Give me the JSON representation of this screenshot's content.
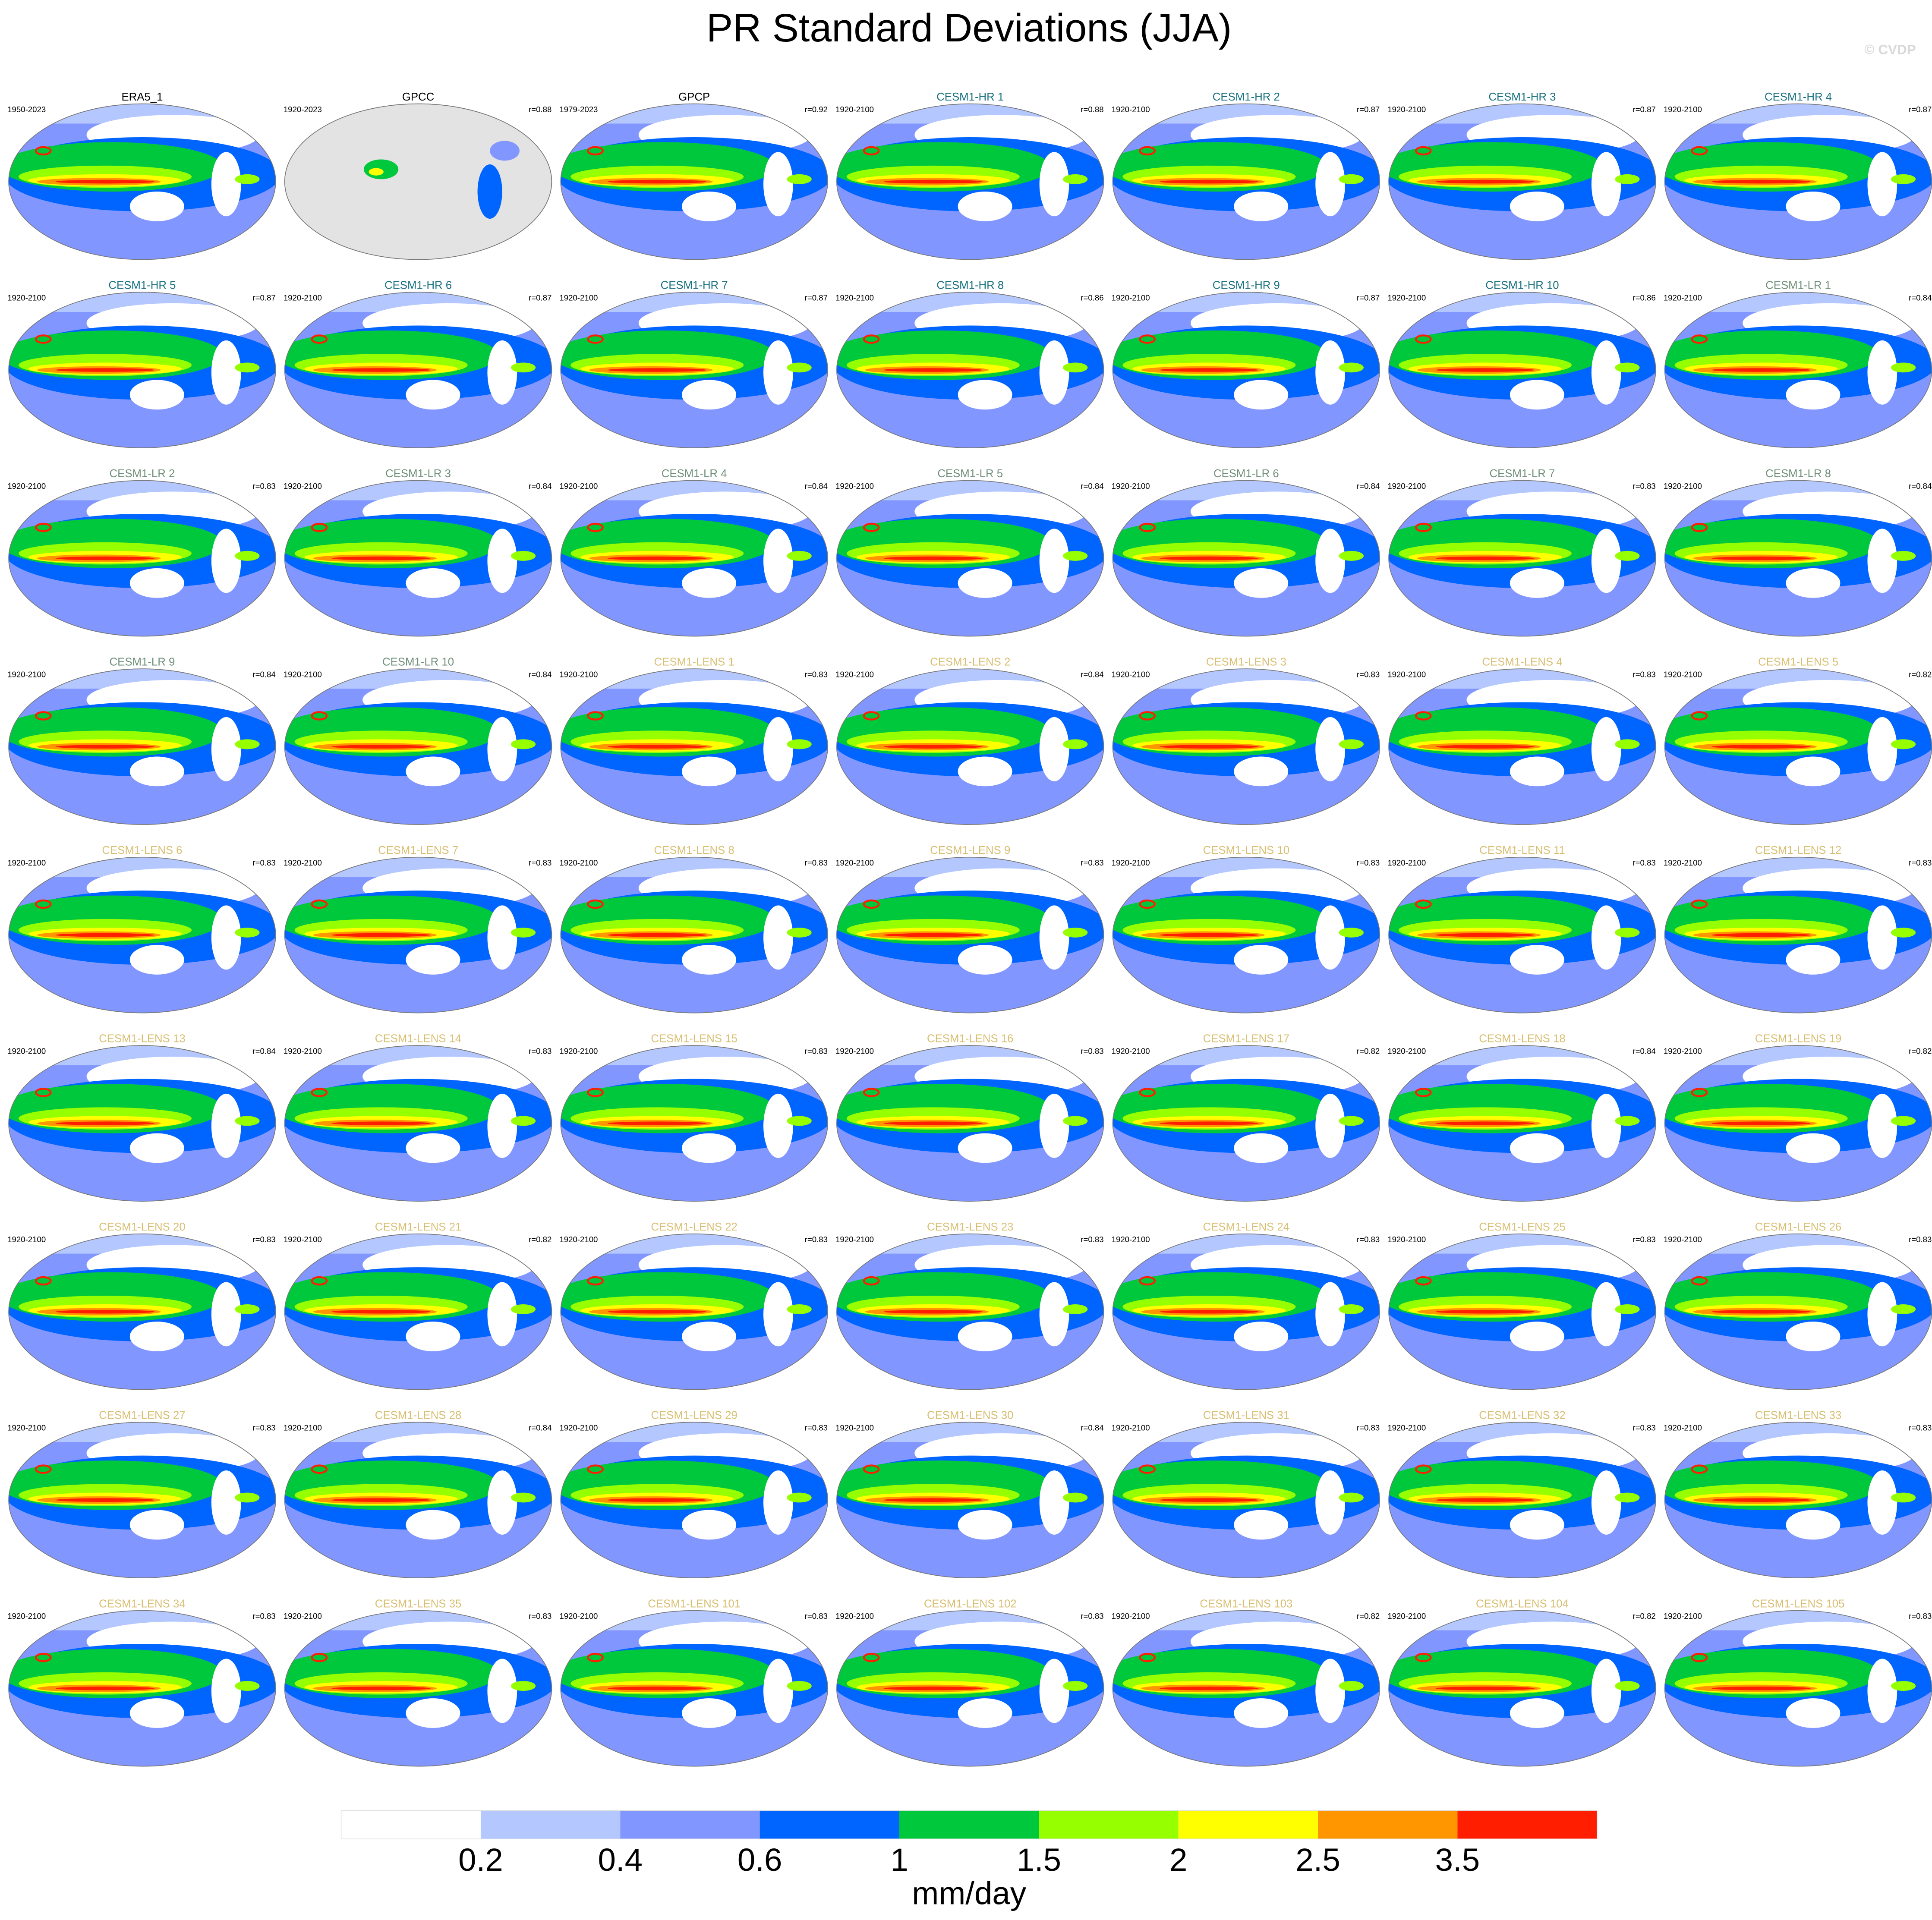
{
  "title": "PR Standard Deviations (JJA)",
  "credit": "© CVDP",
  "panels": [
    {
      "label": "ERA5_1",
      "period": "1950-2023",
      "r": null,
      "color": "#000000"
    },
    {
      "label": "GPCC",
      "period": "1920-2023",
      "r": "r=0.88",
      "color": "#000000"
    },
    {
      "label": "GPCP",
      "period": "1979-2023",
      "r": "r=0.92",
      "color": "#000000"
    },
    {
      "label": "CESM1-HR 1",
      "period": "1920-2100",
      "r": "r=0.88",
      "color": "#17707f"
    },
    {
      "label": "CESM1-HR 2",
      "period": "1920-2100",
      "r": "r=0.87",
      "color": "#17707f"
    },
    {
      "label": "CESM1-HR 3",
      "period": "1920-2100",
      "r": "r=0.87",
      "color": "#17707f"
    },
    {
      "label": "CESM1-HR 4",
      "period": "1920-2100",
      "r": "r=0.87",
      "color": "#17707f"
    },
    {
      "label": "CESM1-HR 5",
      "period": "1920-2100",
      "r": "r=0.87",
      "color": "#17707f"
    },
    {
      "label": "CESM1-HR 6",
      "period": "1920-2100",
      "r": "r=0.87",
      "color": "#17707f"
    },
    {
      "label": "CESM1-HR 7",
      "period": "1920-2100",
      "r": "r=0.87",
      "color": "#17707f"
    },
    {
      "label": "CESM1-HR 8",
      "period": "1920-2100",
      "r": "r=0.86",
      "color": "#17707f"
    },
    {
      "label": "CESM1-HR 9",
      "period": "1920-2100",
      "r": "r=0.87",
      "color": "#17707f"
    },
    {
      "label": "CESM1-HR 10",
      "period": "1920-2100",
      "r": "r=0.86",
      "color": "#17707f"
    },
    {
      "label": "CESM1-LR 1",
      "period": "1920-2100",
      "r": "r=0.84",
      "color": "#6f8f7a"
    },
    {
      "label": "CESM1-LR 2",
      "period": "1920-2100",
      "r": "r=0.83",
      "color": "#6f8f7a"
    },
    {
      "label": "CESM1-LR 3",
      "period": "1920-2100",
      "r": "r=0.84",
      "color": "#6f8f7a"
    },
    {
      "label": "CESM1-LR 4",
      "period": "1920-2100",
      "r": "r=0.84",
      "color": "#6f8f7a"
    },
    {
      "label": "CESM1-LR 5",
      "period": "1920-2100",
      "r": "r=0.84",
      "color": "#6f8f7a"
    },
    {
      "label": "CESM1-LR 6",
      "period": "1920-2100",
      "r": "r=0.84",
      "color": "#6f8f7a"
    },
    {
      "label": "CESM1-LR 7",
      "period": "1920-2100",
      "r": "r=0.83",
      "color": "#6f8f7a"
    },
    {
      "label": "CESM1-LR 8",
      "period": "1920-2100",
      "r": "r=0.84",
      "color": "#6f8f7a"
    },
    {
      "label": "CESM1-LR 9",
      "period": "1920-2100",
      "r": "r=0.84",
      "color": "#6f8f7a"
    },
    {
      "label": "CESM1-LR 10",
      "period": "1920-2100",
      "r": "r=0.84",
      "color": "#6f8f7a"
    },
    {
      "label": "CESM1-LENS 1",
      "period": "1920-2100",
      "r": "r=0.83",
      "color": "#d9bf72"
    },
    {
      "label": "CESM1-LENS 2",
      "period": "1920-2100",
      "r": "r=0.84",
      "color": "#d9bf72"
    },
    {
      "label": "CESM1-LENS 3",
      "period": "1920-2100",
      "r": "r=0.83",
      "color": "#d9bf72"
    },
    {
      "label": "CESM1-LENS 4",
      "period": "1920-2100",
      "r": "r=0.83",
      "color": "#d9bf72"
    },
    {
      "label": "CESM1-LENS 5",
      "period": "1920-2100",
      "r": "r=0.82",
      "color": "#d9bf72"
    },
    {
      "label": "CESM1-LENS 6",
      "period": "1920-2100",
      "r": "r=0.83",
      "color": "#d9bf72"
    },
    {
      "label": "CESM1-LENS 7",
      "period": "1920-2100",
      "r": "r=0.83",
      "color": "#d9bf72"
    },
    {
      "label": "CESM1-LENS 8",
      "period": "1920-2100",
      "r": "r=0.83",
      "color": "#d9bf72"
    },
    {
      "label": "CESM1-LENS 9",
      "period": "1920-2100",
      "r": "r=0.83",
      "color": "#d9bf72"
    },
    {
      "label": "CESM1-LENS 10",
      "period": "1920-2100",
      "r": "r=0.83",
      "color": "#d9bf72"
    },
    {
      "label": "CESM1-LENS 11",
      "period": "1920-2100",
      "r": "r=0.83",
      "color": "#d9bf72"
    },
    {
      "label": "CESM1-LENS 12",
      "period": "1920-2100",
      "r": "r=0.83",
      "color": "#d9bf72"
    },
    {
      "label": "CESM1-LENS 13",
      "period": "1920-2100",
      "r": "r=0.84",
      "color": "#d9bf72"
    },
    {
      "label": "CESM1-LENS 14",
      "period": "1920-2100",
      "r": "r=0.83",
      "color": "#d9bf72"
    },
    {
      "label": "CESM1-LENS 15",
      "period": "1920-2100",
      "r": "r=0.83",
      "color": "#d9bf72"
    },
    {
      "label": "CESM1-LENS 16",
      "period": "1920-2100",
      "r": "r=0.83",
      "color": "#d9bf72"
    },
    {
      "label": "CESM1-LENS 17",
      "period": "1920-2100",
      "r": "r=0.82",
      "color": "#d9bf72"
    },
    {
      "label": "CESM1-LENS 18",
      "period": "1920-2100",
      "r": "r=0.84",
      "color": "#d9bf72"
    },
    {
      "label": "CESM1-LENS 19",
      "period": "1920-2100",
      "r": "r=0.82",
      "color": "#d9bf72"
    },
    {
      "label": "CESM1-LENS 20",
      "period": "1920-2100",
      "r": "r=0.83",
      "color": "#d9bf72"
    },
    {
      "label": "CESM1-LENS 21",
      "period": "1920-2100",
      "r": "r=0.82",
      "color": "#d9bf72"
    },
    {
      "label": "CESM1-LENS 22",
      "period": "1920-2100",
      "r": "r=0.83",
      "color": "#d9bf72"
    },
    {
      "label": "CESM1-LENS 23",
      "period": "1920-2100",
      "r": "r=0.83",
      "color": "#d9bf72"
    },
    {
      "label": "CESM1-LENS 24",
      "period": "1920-2100",
      "r": "r=0.83",
      "color": "#d9bf72"
    },
    {
      "label": "CESM1-LENS 25",
      "period": "1920-2100",
      "r": "r=0.83",
      "color": "#d9bf72"
    },
    {
      "label": "CESM1-LENS 26",
      "period": "1920-2100",
      "r": "r=0.83",
      "color": "#d9bf72"
    },
    {
      "label": "CESM1-LENS 27",
      "period": "1920-2100",
      "r": "r=0.83",
      "color": "#d9bf72"
    },
    {
      "label": "CESM1-LENS 28",
      "period": "1920-2100",
      "r": "r=0.84",
      "color": "#d9bf72"
    },
    {
      "label": "CESM1-LENS 29",
      "period": "1920-2100",
      "r": "r=0.83",
      "color": "#d9bf72"
    },
    {
      "label": "CESM1-LENS 30",
      "period": "1920-2100",
      "r": "r=0.84",
      "color": "#d9bf72"
    },
    {
      "label": "CESM1-LENS 31",
      "period": "1920-2100",
      "r": "r=0.83",
      "color": "#d9bf72"
    },
    {
      "label": "CESM1-LENS 32",
      "period": "1920-2100",
      "r": "r=0.83",
      "color": "#d9bf72"
    },
    {
      "label": "CESM1-LENS 33",
      "period": "1920-2100",
      "r": "r=0.83",
      "color": "#d9bf72"
    },
    {
      "label": "CESM1-LENS 34",
      "period": "1920-2100",
      "r": "r=0.83",
      "color": "#d9bf72"
    },
    {
      "label": "CESM1-LENS 35",
      "period": "1920-2100",
      "r": "r=0.83",
      "color": "#d9bf72"
    },
    {
      "label": "CESM1-LENS 101",
      "period": "1920-2100",
      "r": "r=0.83",
      "color": "#d9bf72"
    },
    {
      "label": "CESM1-LENS 102",
      "period": "1920-2100",
      "r": "r=0.83",
      "color": "#d9bf72"
    },
    {
      "label": "CESM1-LENS 103",
      "period": "1920-2100",
      "r": "r=0.82",
      "color": "#d9bf72"
    },
    {
      "label": "CESM1-LENS 104",
      "period": "1920-2100",
      "r": "r=0.82",
      "color": "#d9bf72"
    },
    {
      "label": "CESM1-LENS 105",
      "period": "1920-2100",
      "r": "r=0.83",
      "color": "#d9bf72"
    }
  ],
  "colorbar": {
    "colors": [
      "#ffffff",
      "#b4c8ff",
      "#8296ff",
      "#0064ff",
      "#00c83c",
      "#96ff00",
      "#ffff00",
      "#ff9600",
      "#ff1e00"
    ],
    "labels": [
      0.2,
      0.4,
      0.6,
      1,
      1.5,
      2,
      2.5,
      3.5
    ],
    "units": "mm/day"
  }
}
